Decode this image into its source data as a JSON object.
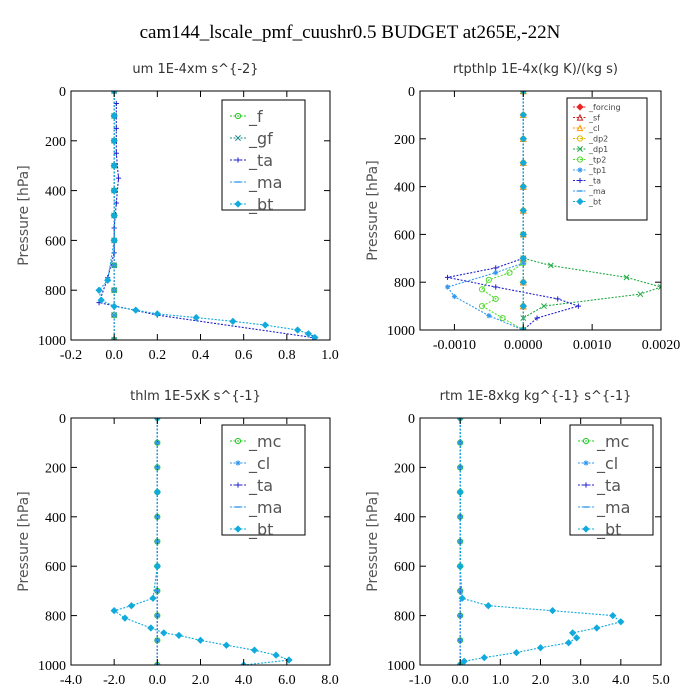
{
  "figure_title": "cam144_lscale_pmf_cuushr0.5  BUDGET at265E,-22N",
  "chart_data": [
    {
      "type": "line",
      "title": "um   1E-4xm s^{-2}",
      "ylabel": "Pressure [hPa]",
      "xlim": [
        -0.2,
        1.0
      ],
      "ylim": [
        1000,
        0
      ],
      "xticks": [
        -0.2,
        0.0,
        0.2,
        0.4,
        0.6,
        0.8,
        1.0
      ],
      "xtick_labels": [
        "-0.2",
        "0.0",
        "0.2",
        "0.4",
        "0.6",
        "0.8",
        "1.0"
      ],
      "yticks": [
        0,
        200,
        400,
        600,
        800,
        1000
      ],
      "ytick_labels": [
        "0",
        "200",
        "400",
        "600",
        "800",
        "1000"
      ],
      "legend_style": "large",
      "series": [
        {
          "name": "_f",
          "color": "#22cc22",
          "marker": "circle",
          "x": [
            0,
            0,
            0,
            0,
            0,
            0,
            0,
            0,
            0,
            0,
            0
          ],
          "y": [
            0,
            100,
            200,
            300,
            400,
            500,
            600,
            700,
            800,
            900,
            1000
          ]
        },
        {
          "name": "_gf",
          "color": "#208a8a",
          "marker": "x",
          "x": [
            0,
            0,
            0,
            0,
            0,
            0,
            0,
            0,
            0,
            0,
            0
          ],
          "y": [
            0,
            100,
            200,
            300,
            400,
            500,
            600,
            700,
            800,
            900,
            1000
          ]
        },
        {
          "name": "_ta",
          "color": "#2222cc",
          "marker": "plus",
          "x": [
            0.01,
            0.01,
            0.01,
            0.02,
            0.01,
            0,
            0,
            -0.03,
            -0.07,
            0.2,
            0.92
          ],
          "y": [
            50,
            150,
            250,
            350,
            450,
            550,
            650,
            750,
            850,
            900,
            990
          ]
        },
        {
          "name": "_ma",
          "color": "#3399ee",
          "marker": "dash",
          "x": [
            0,
            0,
            0,
            0,
            0,
            0,
            0,
            0,
            0,
            0,
            0
          ],
          "y": [
            0,
            100,
            200,
            300,
            400,
            500,
            600,
            700,
            800,
            900,
            1000
          ]
        },
        {
          "name": "_bt",
          "color": "#11aadd",
          "marker": "diamond",
          "x": [
            0,
            0,
            0,
            0,
            0,
            0,
            0,
            -0.03,
            -0.07,
            -0.06,
            0.0,
            0.1,
            0.2,
            0.38,
            0.55,
            0.7,
            0.85,
            0.9,
            0.93
          ],
          "y": [
            0,
            100,
            200,
            300,
            400,
            500,
            600,
            760,
            800,
            840,
            865,
            880,
            895,
            910,
            925,
            940,
            960,
            975,
            990
          ]
        }
      ]
    },
    {
      "type": "line",
      "title": "rtpthlp   1E-4x(kg K)/(kg s)",
      "ylabel": "Pressure [hPa]",
      "xlim": [
        -0.0015,
        0.002
      ],
      "ylim": [
        1000,
        0
      ],
      "xticks": [
        -0.001,
        0.0,
        0.001,
        0.002
      ],
      "xtick_labels": [
        "-0.0010",
        "0.0000",
        "0.0010",
        "0.0020"
      ],
      "yticks": [
        0,
        200,
        400,
        600,
        800,
        1000
      ],
      "ytick_labels": [
        "0",
        "200",
        "400",
        "600",
        "800",
        "1000"
      ],
      "legend_style": "small",
      "series": [
        {
          "name": "_forcing",
          "color": "#ee2222",
          "marker": "diamond",
          "x": [
            0,
            0,
            0,
            0,
            0,
            0,
            0,
            0,
            0,
            0,
            0
          ],
          "y": [
            0,
            100,
            200,
            300,
            400,
            500,
            600,
            700,
            800,
            900,
            1000
          ]
        },
        {
          "name": "_sf",
          "color": "#cc2222",
          "marker": "triangle",
          "x": [
            0,
            0,
            0,
            0,
            0,
            0,
            0,
            0,
            0,
            0,
            0
          ],
          "y": [
            0,
            100,
            200,
            300,
            400,
            500,
            600,
            700,
            800,
            900,
            1000
          ]
        },
        {
          "name": "_cl",
          "color": "#ff9900",
          "marker": "triangle",
          "x": [
            0,
            0,
            0,
            0,
            0,
            0,
            0,
            0,
            0,
            0,
            0
          ],
          "y": [
            0,
            100,
            200,
            300,
            400,
            500,
            600,
            700,
            800,
            900,
            1000
          ]
        },
        {
          "name": "_dp2",
          "color": "#ddbb00",
          "marker": "circle",
          "x": [
            0,
            0,
            0,
            0,
            0,
            0,
            0,
            0,
            0,
            0,
            0
          ],
          "y": [
            0,
            100,
            200,
            300,
            400,
            500,
            600,
            700,
            800,
            900,
            1000
          ]
        },
        {
          "name": "_dp1",
          "color": "#22aa44",
          "marker": "x",
          "x": [
            0,
            0,
            0,
            0.0004,
            0.0015,
            0.002,
            0.0017,
            0.0003,
            0,
            0
          ],
          "y": [
            0,
            600,
            700,
            730,
            780,
            820,
            850,
            900,
            950,
            1000
          ]
        },
        {
          "name": "_tp2",
          "color": "#55dd33",
          "marker": "circle",
          "x": [
            0,
            0,
            -0.0002,
            -0.0005,
            -0.0006,
            -0.0004,
            -0.0006,
            -0.0003,
            0
          ],
          "y": [
            0,
            720,
            760,
            790,
            830,
            870,
            900,
            950,
            1000
          ]
        },
        {
          "name": "_tp1",
          "color": "#3399ee",
          "marker": "asterisk",
          "x": [
            0,
            0,
            -0.0004,
            -0.0011,
            -0.001,
            -0.0005,
            0
          ],
          "y": [
            0,
            720,
            760,
            820,
            860,
            940,
            1000
          ]
        },
        {
          "name": "_ta",
          "color": "#2222cc",
          "marker": "plus",
          "x": [
            0,
            0,
            -0.0004,
            -0.0011,
            -0.0004,
            0.0005,
            0.0008,
            0.0002,
            0
          ],
          "y": [
            0,
            700,
            740,
            780,
            820,
            870,
            900,
            950,
            1000
          ]
        },
        {
          "name": "_ma",
          "color": "#3399ee",
          "marker": "dash",
          "x": [
            0,
            0,
            0,
            0,
            0,
            0,
            0,
            0,
            0,
            0,
            0
          ],
          "y": [
            0,
            100,
            200,
            300,
            400,
            500,
            600,
            700,
            800,
            900,
            1000
          ]
        },
        {
          "name": "_bt",
          "color": "#11aadd",
          "marker": "diamond",
          "x": [
            0,
            0,
            0,
            0,
            0,
            0,
            0,
            0,
            0,
            0,
            0
          ],
          "y": [
            0,
            100,
            200,
            300,
            400,
            500,
            600,
            700,
            800,
            900,
            1000
          ]
        }
      ]
    },
    {
      "type": "line",
      "title": "thlm   1E-5xK s^{-1}",
      "ylabel": "Pressure [hPa]",
      "xlim": [
        -4.0,
        8.0
      ],
      "ylim": [
        1000,
        0
      ],
      "xticks": [
        -4,
        -2,
        0,
        2,
        4,
        6,
        8
      ],
      "xtick_labels": [
        "-4.0",
        "-2.0",
        "0.0",
        "2.0",
        "4.0",
        "6.0",
        "8.0"
      ],
      "yticks": [
        0,
        200,
        400,
        600,
        800,
        1000
      ],
      "ytick_labels": [
        "0",
        "200",
        "400",
        "600",
        "800",
        "1000"
      ],
      "legend_style": "large",
      "series": [
        {
          "name": "_mc",
          "color": "#22cc22",
          "marker": "circle",
          "x": [
            0,
            0,
            0,
            0,
            0,
            0,
            0,
            0,
            0,
            0,
            0
          ],
          "y": [
            0,
            100,
            200,
            300,
            400,
            500,
            600,
            700,
            800,
            900,
            1000
          ]
        },
        {
          "name": "_cl",
          "color": "#3399ee",
          "marker": "asterisk",
          "x": [
            0,
            0,
            0,
            0,
            0,
            0,
            0,
            0,
            0,
            0,
            0
          ],
          "y": [
            0,
            100,
            200,
            300,
            400,
            500,
            600,
            700,
            800,
            900,
            1000
          ]
        },
        {
          "name": "_ta",
          "color": "#2222cc",
          "marker": "plus",
          "x": [
            0,
            0,
            0,
            0,
            0,
            0,
            0,
            0,
            0,
            0,
            0
          ],
          "y": [
            0,
            100,
            200,
            300,
            400,
            500,
            600,
            700,
            800,
            900,
            1000
          ]
        },
        {
          "name": "_ma",
          "color": "#3399ee",
          "marker": "dash",
          "x": [
            0,
            0,
            0,
            0,
            0,
            0,
            0,
            0,
            0,
            0,
            0
          ],
          "y": [
            0,
            100,
            200,
            300,
            400,
            500,
            600,
            700,
            800,
            900,
            1000
          ]
        },
        {
          "name": "_bt",
          "color": "#11aadd",
          "marker": "diamond",
          "x": [
            0,
            0,
            0,
            -0.2,
            -1.2,
            -2.0,
            -1.5,
            -0.3,
            0.3,
            1.0,
            2.0,
            3.2,
            4.5,
            5.5,
            6.1,
            4.0
          ],
          "y": [
            0,
            300,
            600,
            730,
            760,
            780,
            810,
            850,
            870,
            880,
            900,
            920,
            940,
            960,
            980,
            1000
          ]
        }
      ]
    },
    {
      "type": "line",
      "title": "rtm   1E-8xkg kg^{-1} s^{-1}",
      "ylabel": "Pressure [hPa]",
      "xlim": [
        -1.0,
        5.0
      ],
      "ylim": [
        1000,
        0
      ],
      "xticks": [
        -1,
        0,
        1,
        2,
        3,
        4,
        5
      ],
      "xtick_labels": [
        "-1.0",
        "0.0",
        "1.0",
        "2.0",
        "3.0",
        "4.0",
        "5.0"
      ],
      "yticks": [
        0,
        200,
        400,
        600,
        800,
        1000
      ],
      "ytick_labels": [
        "0",
        "200",
        "400",
        "600",
        "800",
        "1000"
      ],
      "legend_style": "large",
      "series": [
        {
          "name": "_mc",
          "color": "#22cc22",
          "marker": "circle",
          "x": [
            0,
            0,
            0,
            0,
            0,
            0,
            0,
            0,
            0,
            0,
            0
          ],
          "y": [
            0,
            100,
            200,
            300,
            400,
            500,
            600,
            700,
            800,
            900,
            1000
          ]
        },
        {
          "name": "_cl",
          "color": "#3399ee",
          "marker": "asterisk",
          "x": [
            0,
            0,
            0,
            0,
            0,
            0,
            0,
            0,
            0,
            0,
            0
          ],
          "y": [
            0,
            100,
            200,
            300,
            400,
            500,
            600,
            700,
            800,
            900,
            1000
          ]
        },
        {
          "name": "_ta",
          "color": "#2222cc",
          "marker": "plus",
          "x": [
            0,
            0,
            0,
            0,
            0,
            0,
            0,
            0,
            0,
            0,
            0
          ],
          "y": [
            0,
            100,
            200,
            300,
            400,
            500,
            600,
            700,
            800,
            900,
            1000
          ]
        },
        {
          "name": "_ma",
          "color": "#3399ee",
          "marker": "dash",
          "x": [
            0,
            0,
            0,
            0,
            0,
            0,
            0,
            0,
            0,
            0,
            0
          ],
          "y": [
            0,
            100,
            200,
            300,
            400,
            500,
            600,
            700,
            800,
            900,
            1000
          ]
        },
        {
          "name": "_bt",
          "color": "#11aadd",
          "marker": "diamond",
          "x": [
            0,
            0,
            0,
            0.05,
            0.7,
            2.3,
            3.8,
            4.0,
            3.4,
            2.8,
            2.9,
            2.7,
            2.0,
            1.4,
            0.6,
            0.1,
            0
          ],
          "y": [
            0,
            300,
            600,
            730,
            760,
            780,
            800,
            825,
            850,
            870,
            890,
            910,
            930,
            950,
            970,
            985,
            1000
          ]
        }
      ]
    }
  ]
}
